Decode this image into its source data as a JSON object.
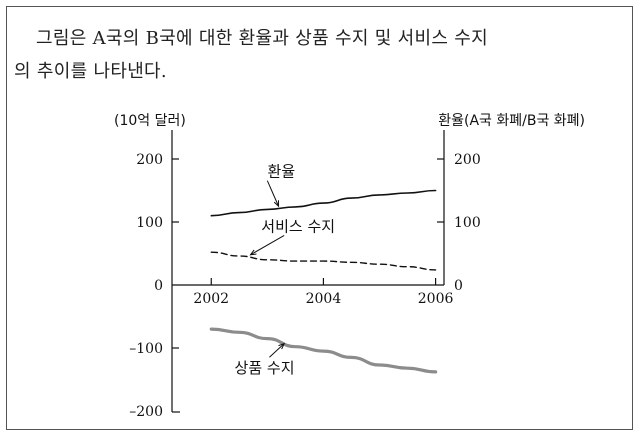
{
  "question": {
    "line1": "그림은 A국의 B국에 대한 환율과 상품 수지 및 서비스 수지",
    "line2": "의 추이를 나타낸다."
  },
  "chart_data": {
    "type": "line",
    "title": "",
    "left_axis_label": "(10억 달러)",
    "right_axis_label": "환율(A국 화폐/B국 화폐)",
    "x_ticks": [
      "2002",
      "2004",
      "2006"
    ],
    "x_range": [
      2001.3,
      2006.15
    ],
    "left_ylim": [
      -200,
      200
    ],
    "right_ylim": [
      0,
      200
    ],
    "left_ticks": [
      200,
      100,
      0,
      -100,
      -200
    ],
    "left_tick_labels": [
      "200",
      "100",
      "0",
      "–100",
      "–200"
    ],
    "right_ticks": [
      200,
      100,
      0
    ],
    "right_tick_labels": [
      "200",
      "100",
      "0"
    ],
    "grid": false,
    "legend": "none (inline labels)",
    "series": [
      {
        "name": "환율",
        "axis": "right",
        "style": "solid-thin",
        "color": "#111111",
        "label_x": 2003.25,
        "label_y": 172,
        "arrow_to": [
          2003.2,
          125
        ],
        "x": [
          2002,
          2002.5,
          2003,
          2003.5,
          2004,
          2004.5,
          2005,
          2005.5,
          2006
        ],
        "y": [
          110,
          115,
          120,
          124,
          130,
          138,
          143,
          146,
          150
        ]
      },
      {
        "name": "서비스 수지",
        "axis": "left",
        "style": "dashed",
        "color": "#111111",
        "label_x": 2003.55,
        "label_y": 85,
        "arrow_to": [
          2002.7,
          48
        ],
        "x": [
          2002,
          2002.5,
          2003,
          2003.5,
          2004,
          2004.5,
          2005,
          2005.5,
          2006
        ],
        "y": [
          52,
          46,
          40,
          38,
          38,
          36,
          33,
          29,
          24
        ]
      },
      {
        "name": "상품 수지",
        "axis": "left",
        "style": "solid-thick",
        "color": "#8c8c8c",
        "label_x": 2002.95,
        "label_y": -140,
        "arrow_to": [
          2003.3,
          -93
        ],
        "x": [
          2002,
          2002.5,
          2003,
          2003.5,
          2004,
          2004.5,
          2005,
          2005.5,
          2006
        ],
        "y": [
          -70,
          -75,
          -85,
          -98,
          -105,
          -115,
          -127,
          -132,
          -138
        ]
      }
    ]
  }
}
